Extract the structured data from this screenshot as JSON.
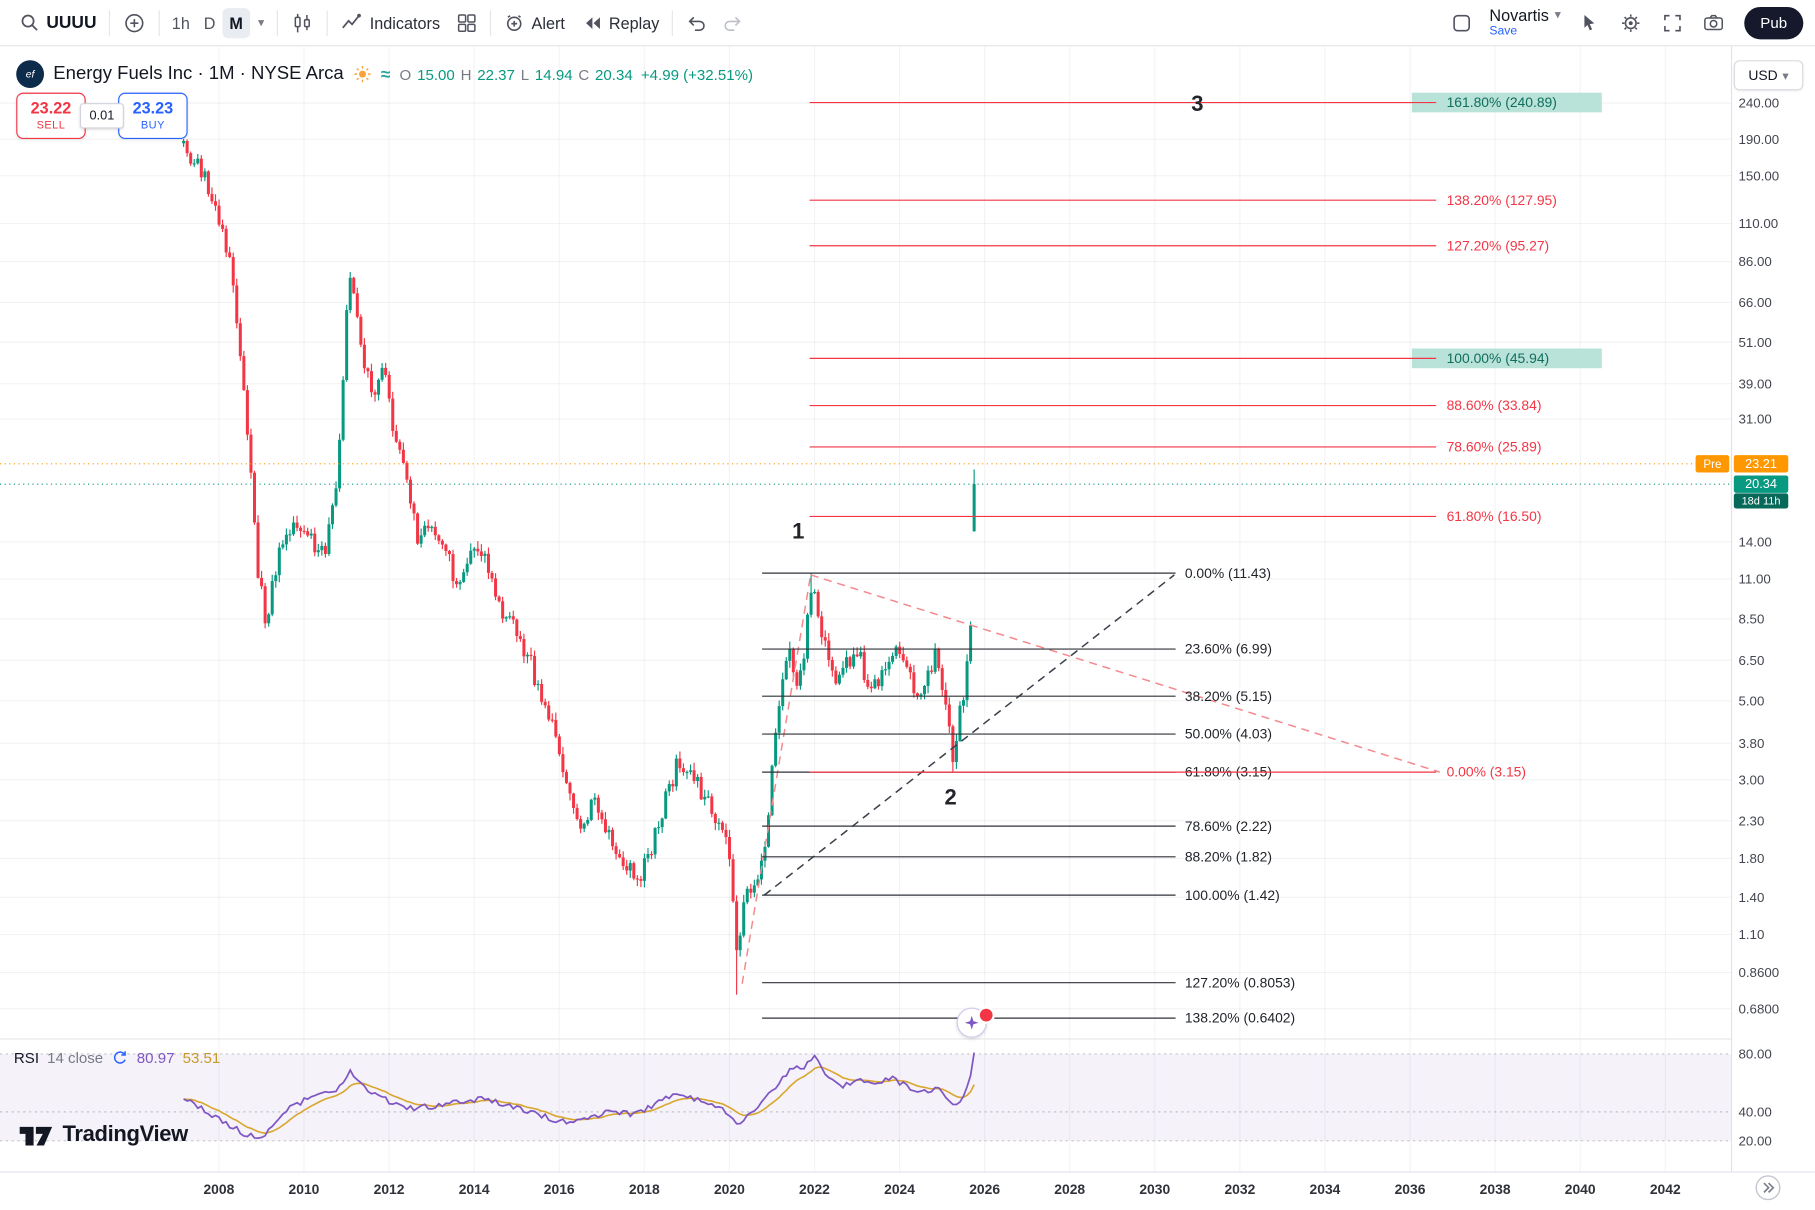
{
  "toolbar": {
    "symbol": "UUUU",
    "intervals": [
      "1h",
      "D",
      "M"
    ],
    "active_interval": "M",
    "indicators_label": "Indicators",
    "alert_label": "Alert",
    "replay_label": "Replay",
    "layout_name": "Novartis",
    "save_label": "Save",
    "publish_label": "Pub"
  },
  "legend": {
    "title": "Energy Fuels Inc · 1M · NYSE Arca",
    "ohlc": {
      "o_label": "O",
      "o": "15.00",
      "h_label": "H",
      "h": "22.37",
      "l_label": "L",
      "l": "14.94",
      "c_label": "C",
      "c": "20.34",
      "change": "+4.99 (+32.51%)"
    },
    "currency": "USD"
  },
  "order_panel": {
    "sell_price": "23.22",
    "sell_label": "SELL",
    "spread": "0.01",
    "buy_price": "23.23",
    "buy_label": "BUY"
  },
  "price_labels": {
    "pre_label": "Pre",
    "pre_price": "23.21",
    "last_price": "20.34",
    "countdown": "18d 11h"
  },
  "rsi_legend": {
    "title": "RSI",
    "params": "14 close",
    "value": "80.97",
    "ma_value": "53.51"
  },
  "brand": {
    "name": "TradingView"
  },
  "chart_data": {
    "type": "candlestick",
    "symbol": "UUUU",
    "exchange": "NYSE Arca",
    "interval": "1M",
    "scale": "log",
    "x_axis": {
      "start": 2008,
      "end": 2042,
      "step": 2
    },
    "y_axis": {
      "ticks": [
        "240.00",
        "190.00",
        "150.00",
        "110.00",
        "86.00",
        "66.00",
        "51.00",
        "39.00",
        "31.00",
        "14.00",
        "11.00",
        "8.50",
        "6.50",
        "5.00",
        "3.80",
        "3.00",
        "2.30",
        "1.80",
        "1.40",
        "1.10",
        "0.8600",
        "0.6800"
      ]
    },
    "rsi_ticks": [
      "80.00",
      "40.00",
      "20.00"
    ],
    "rsi_levels": [
      80,
      40,
      20
    ],
    "t_start": 2007.17,
    "t_end": 2025.83,
    "last_candle": {
      "o": 15.0,
      "h": 22.37,
      "l": 14.94,
      "c": 20.34
    },
    "price_anchors": [
      [
        2007.17,
        185
      ],
      [
        2007.4,
        165
      ],
      [
        2007.75,
        140
      ],
      [
        2008.0,
        115
      ],
      [
        2008.3,
        80
      ],
      [
        2008.6,
        38
      ],
      [
        2008.9,
        12
      ],
      [
        2009.1,
        8.5
      ],
      [
        2009.4,
        13
      ],
      [
        2009.75,
        16
      ],
      [
        2010.1,
        14
      ],
      [
        2010.5,
        13
      ],
      [
        2010.8,
        22
      ],
      [
        2011.0,
        60
      ],
      [
        2011.1,
        80
      ],
      [
        2011.35,
        48
      ],
      [
        2011.6,
        36
      ],
      [
        2011.9,
        42
      ],
      [
        2012.1,
        30
      ],
      [
        2012.4,
        20
      ],
      [
        2012.7,
        14
      ],
      [
        2013.0,
        16
      ],
      [
        2013.3,
        13
      ],
      [
        2013.6,
        11
      ],
      [
        2013.9,
        12.5
      ],
      [
        2014.2,
        13.5
      ],
      [
        2014.5,
        10
      ],
      [
        2014.9,
        8
      ],
      [
        2015.2,
        7
      ],
      [
        2015.6,
        5
      ],
      [
        2015.9,
        4
      ],
      [
        2016.2,
        2.7
      ],
      [
        2016.5,
        2.1
      ],
      [
        2016.8,
        2.6
      ],
      [
        2017.1,
        2.2
      ],
      [
        2017.5,
        1.8
      ],
      [
        2017.9,
        1.55
      ],
      [
        2018.2,
        2.0
      ],
      [
        2018.5,
        2.6
      ],
      [
        2018.8,
        3.5
      ],
      [
        2019.1,
        3.1
      ],
      [
        2019.4,
        2.7
      ],
      [
        2019.7,
        2.4
      ],
      [
        2019.95,
        2.0
      ],
      [
        2020.2,
        0.9
      ],
      [
        2020.35,
        1.35
      ],
      [
        2020.6,
        1.6
      ],
      [
        2020.85,
        1.9
      ],
      [
        2021.0,
        3.2
      ],
      [
        2021.2,
        5.5
      ],
      [
        2021.4,
        6.8
      ],
      [
        2021.6,
        5.2
      ],
      [
        2021.8,
        7.5
      ],
      [
        2021.95,
        10.5
      ],
      [
        2022.1,
        8.2
      ],
      [
        2022.35,
        6.2
      ],
      [
        2022.6,
        5.6
      ],
      [
        2022.8,
        6.6
      ],
      [
        2023.0,
        6.9
      ],
      [
        2023.2,
        5.9
      ],
      [
        2023.45,
        5.3
      ],
      [
        2023.7,
        6.6
      ],
      [
        2023.95,
        7.6
      ],
      [
        2024.15,
        6.3
      ],
      [
        2024.4,
        5.3
      ],
      [
        2024.65,
        5.9
      ],
      [
        2024.85,
        6.6
      ],
      [
        2025.05,
        5.0
      ],
      [
        2025.25,
        3.4
      ],
      [
        2025.45,
        4.9
      ],
      [
        2025.6,
        6.3
      ],
      [
        2025.7,
        9.5
      ],
      [
        2025.78,
        15.0
      ],
      [
        2025.83,
        20.34
      ]
    ],
    "pins": [
      {
        "t": 2020.21,
        "l": 0.745
      },
      {
        "t": 2021.95,
        "h": 11.43
      },
      {
        "t": 2025.28,
        "l": 3.15
      }
    ],
    "fib_retracement": [
      {
        "label": "0.00% (11.43)",
        "price": 11.43
      },
      {
        "label": "23.60% (6.99)",
        "price": 6.99
      },
      {
        "label": "38.20% (5.15)",
        "price": 5.15
      },
      {
        "label": "50.00% (4.03)",
        "price": 4.03
      },
      {
        "label": "61.80% (3.15)",
        "price": 3.15
      },
      {
        "label": "78.60% (2.22)",
        "price": 2.22
      },
      {
        "label": "88.20% (1.82)",
        "price": 1.82
      },
      {
        "label": "100.00% (1.42)",
        "price": 1.42
      },
      {
        "label": "127.20% (0.8053)",
        "price": 0.8053
      },
      {
        "label": "138.20% (0.6402)",
        "price": 0.6402
      }
    ],
    "fib_extension": [
      {
        "label": "161.80% (240.89)",
        "price": 240.89,
        "highlight": true
      },
      {
        "label": "138.20% (127.95)",
        "price": 127.95
      },
      {
        "label": "127.20% (95.27)",
        "price": 95.27
      },
      {
        "label": "100.00% (45.94)",
        "price": 45.94,
        "highlight": true
      },
      {
        "label": "88.60% (33.84)",
        "price": 33.84
      },
      {
        "label": "78.60% (25.89)",
        "price": 25.89
      },
      {
        "label": "61.80% (16.50)",
        "price": 16.5
      },
      {
        "label": "0.00% (3.15)",
        "price": 3.15
      }
    ],
    "trend_lines": [
      {
        "name": "support-trendline",
        "from": {
          "t": 2020.82,
          "price": 1.42
        },
        "to": {
          "t": 2030.46,
          "price": 11.3
        },
        "color": "#3b3f4a"
      },
      {
        "name": "bear-projection",
        "from": {
          "t": 2021.91,
          "price": 11.3
        },
        "to": {
          "t": 2036.7,
          "price": 3.15
        },
        "color": "#f48a8e"
      },
      {
        "name": "rally-line",
        "from": {
          "t": 2020.3,
          "price": 0.8
        },
        "to": {
          "t": 2021.91,
          "price": 11.3
        },
        "color": "#f48a8e"
      }
    ],
    "wave_labels": [
      {
        "text": "1",
        "t": 2021.62,
        "price": 14.3
      },
      {
        "text": "2",
        "t": 2025.2,
        "price": 2.55
      },
      {
        "text": "3",
        "t": 2031.0,
        "price": 228
      }
    ],
    "rsi_anchors": [
      [
        2007.2,
        50
      ],
      [
        2008.0,
        35
      ],
      [
        2008.6,
        25
      ],
      [
        2009.0,
        22
      ],
      [
        2009.5,
        40
      ],
      [
        2010.0,
        48
      ],
      [
        2010.8,
        55
      ],
      [
        2011.1,
        68
      ],
      [
        2011.5,
        55
      ],
      [
        2012.0,
        47
      ],
      [
        2012.6,
        42
      ],
      [
        2013.2,
        45
      ],
      [
        2013.8,
        47
      ],
      [
        2014.3,
        49
      ],
      [
        2014.9,
        44
      ],
      [
        2015.5,
        38
      ],
      [
        2016.1,
        33
      ],
      [
        2016.6,
        36
      ],
      [
        2017.2,
        40
      ],
      [
        2017.8,
        38
      ],
      [
        2018.3,
        46
      ],
      [
        2018.8,
        53
      ],
      [
        2019.3,
        48
      ],
      [
        2019.8,
        43
      ],
      [
        2020.2,
        30
      ],
      [
        2020.6,
        42
      ],
      [
        2021.0,
        55
      ],
      [
        2021.4,
        68
      ],
      [
        2021.8,
        72
      ],
      [
        2022.0,
        78
      ],
      [
        2022.3,
        65
      ],
      [
        2022.7,
        58
      ],
      [
        2023.0,
        63
      ],
      [
        2023.4,
        58
      ],
      [
        2023.8,
        64
      ],
      [
        2024.2,
        57
      ],
      [
        2024.6,
        54
      ],
      [
        2024.9,
        56
      ],
      [
        2025.1,
        48
      ],
      [
        2025.3,
        42
      ],
      [
        2025.5,
        52
      ],
      [
        2025.65,
        62
      ],
      [
        2025.75,
        72
      ],
      [
        2025.83,
        80.97
      ]
    ],
    "rsi_last": 80.97,
    "colors": {
      "up": "#089981",
      "down": "#f23645",
      "fib": "#2f3238",
      "ext": "#f23645",
      "highlight_bg": "#b9e2d8",
      "highlight_text": "#0f6e5d",
      "rsi": "#7e57c2",
      "rsi_ma": "#d9a62e",
      "pre": "#ff9800",
      "grid": "rgba(42,46,57,0.06)"
    }
  }
}
